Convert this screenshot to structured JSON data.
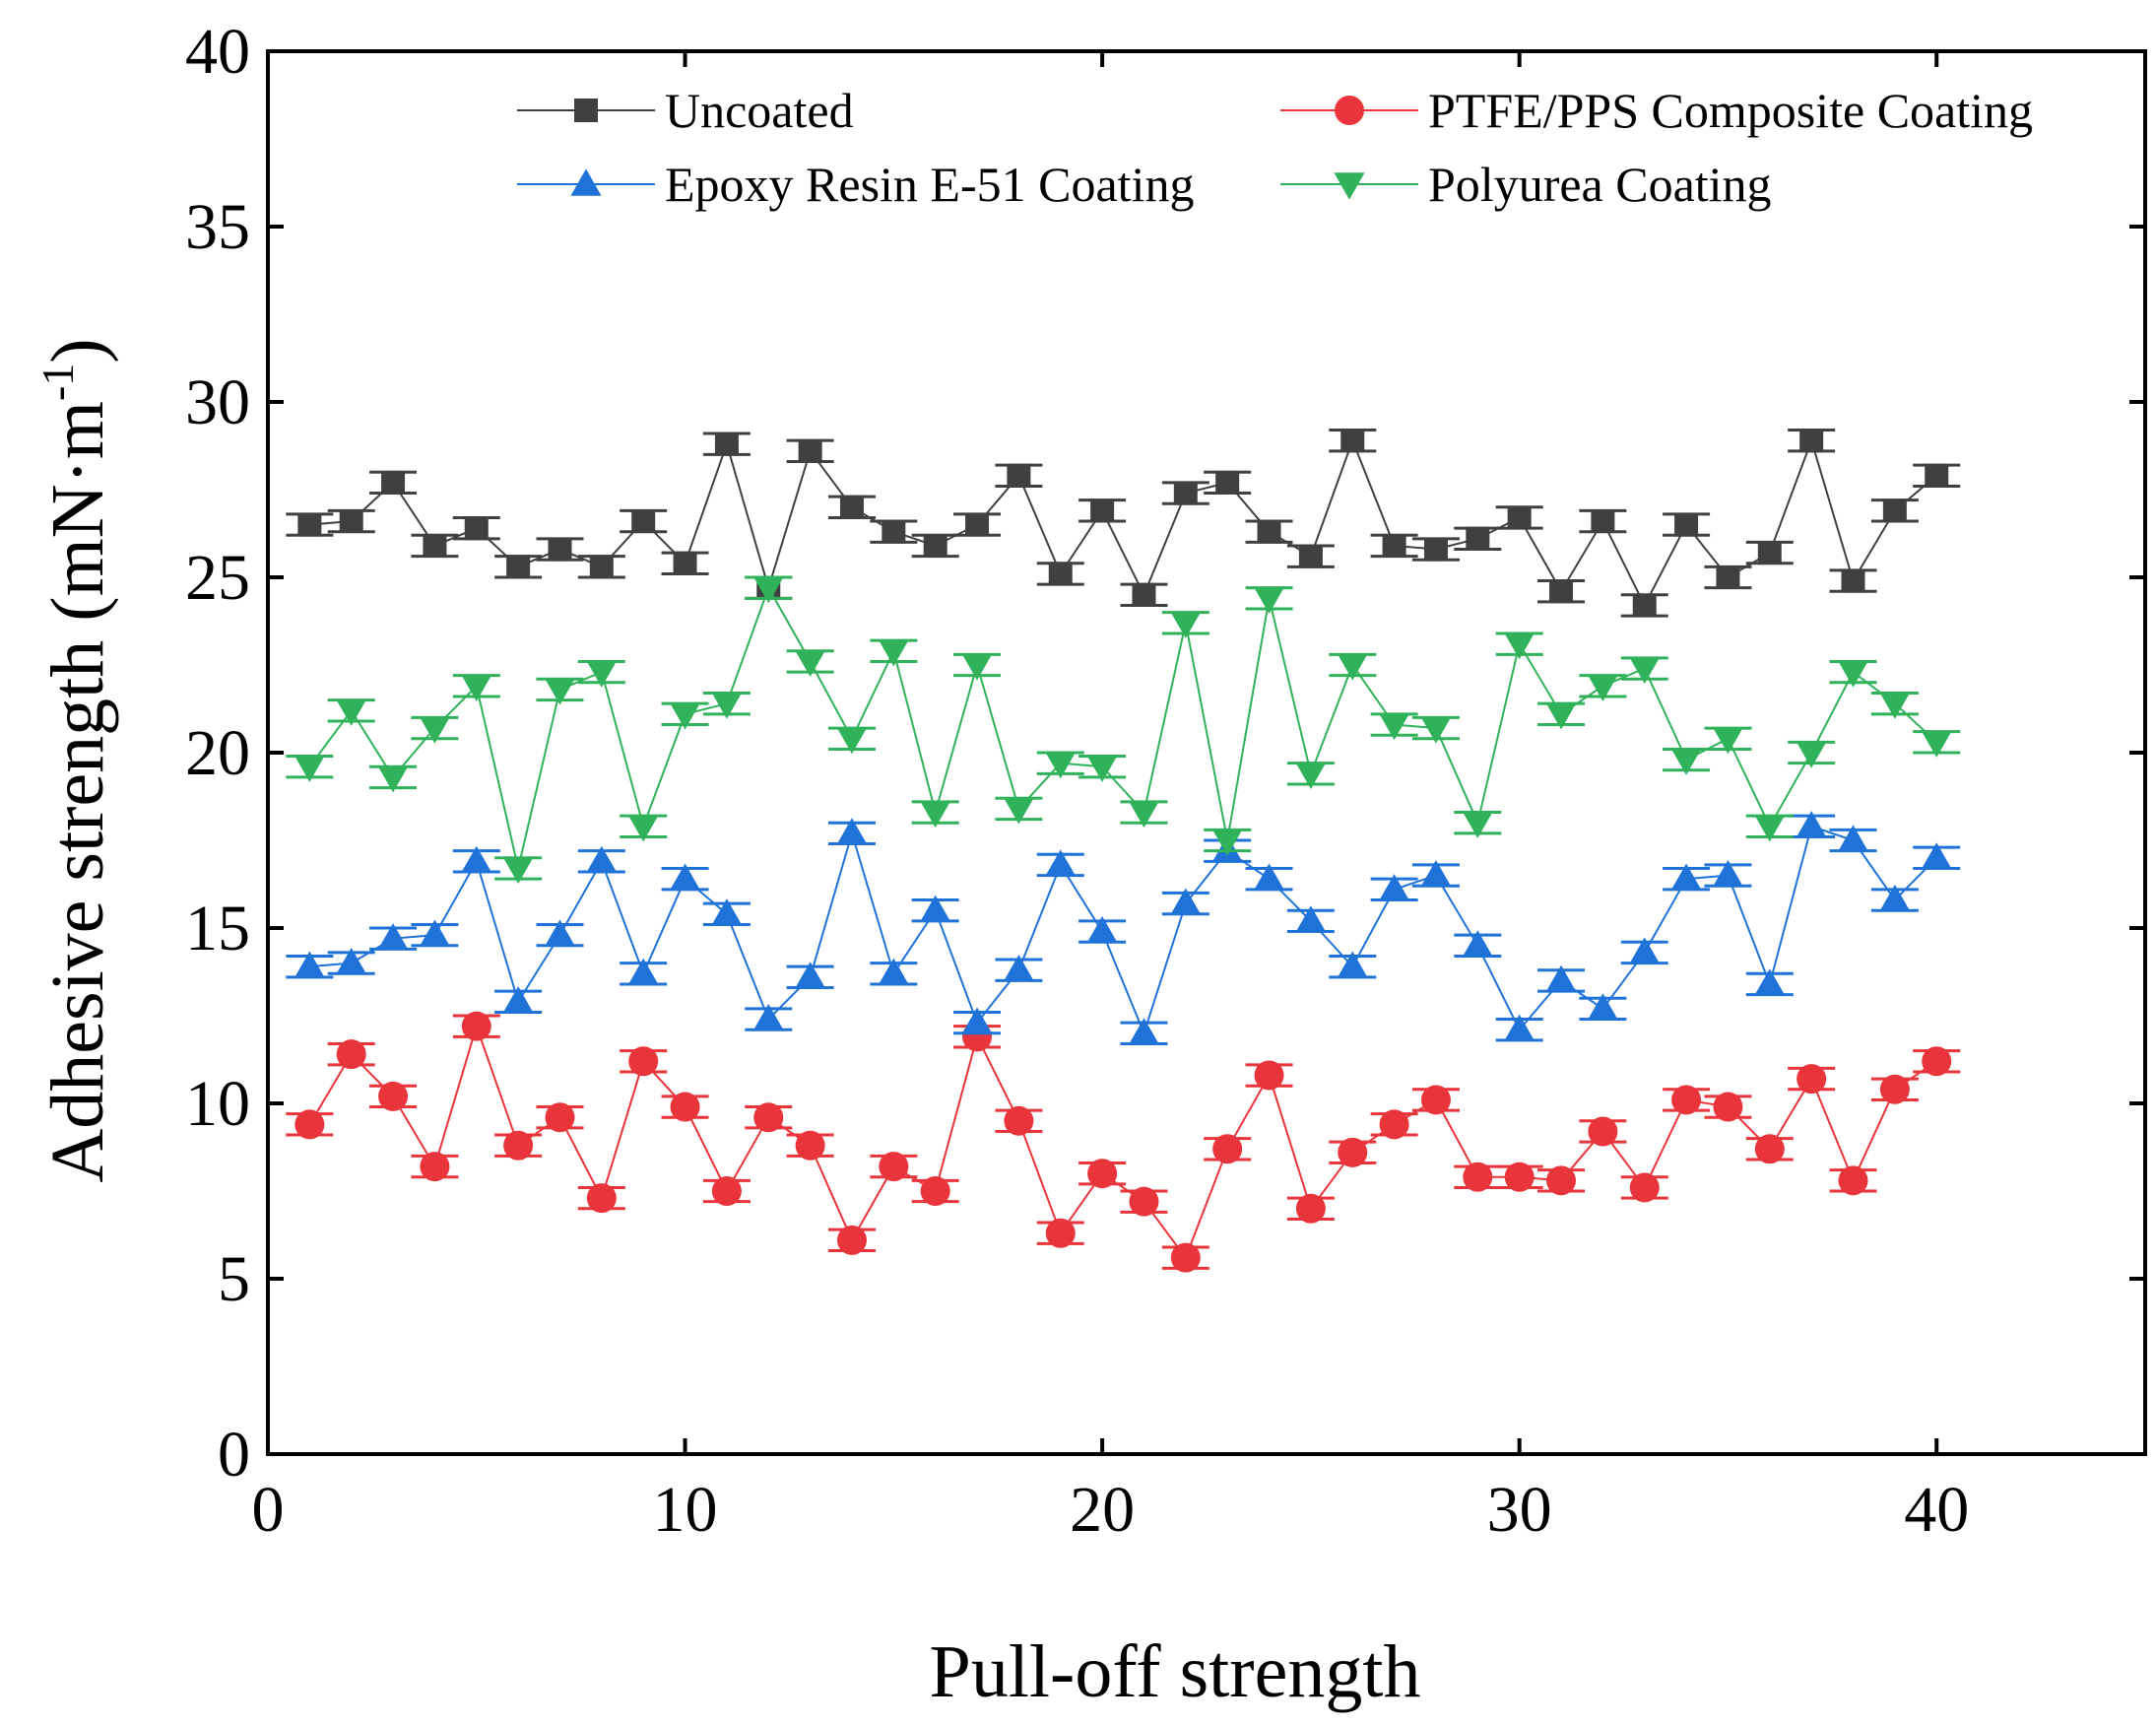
{
  "chart_data": {
    "type": "line",
    "xlabel": "Pull-off strength",
    "ylabel": "Adhesive strength (mN·m",
    "ylabel_superscript": "-1",
    "ylabel_close": ")",
    "xlim": [
      0,
      45
    ],
    "ylim": [
      0,
      40
    ],
    "xticks": [
      0,
      10,
      20,
      30,
      40
    ],
    "yticks": [
      0,
      5,
      10,
      15,
      20,
      25,
      30,
      35,
      40
    ],
    "grid": false,
    "legend_position": "top",
    "error_bars": true,
    "x": [
      1,
      2,
      3,
      4,
      5,
      6,
      7,
      8,
      9,
      10,
      11,
      12,
      13,
      14,
      15,
      16,
      17,
      18,
      19,
      20,
      21,
      22,
      23,
      24,
      25,
      26,
      27,
      28,
      29,
      30,
      31,
      32,
      33,
      34,
      35,
      36,
      37,
      38,
      39,
      40
    ],
    "series": [
      {
        "name": "Uncoated",
        "color": "#404040",
        "marker": "square",
        "values": [
          26.5,
          26.6,
          27.7,
          25.9,
          26.4,
          25.3,
          25.8,
          25.3,
          26.6,
          25.4,
          28.8,
          24.7,
          28.6,
          27.0,
          26.3,
          25.9,
          26.5,
          27.9,
          25.1,
          26.9,
          24.5,
          27.4,
          27.7,
          26.3,
          25.6,
          28.9,
          25.9,
          25.8,
          26.1,
          26.7,
          24.6,
          26.6,
          24.2,
          26.5,
          25.0,
          25.7,
          28.9,
          24.9,
          26.9,
          27.9
        ],
        "errors": [
          0.3,
          0.3,
          0.3,
          0.3,
          0.3,
          0.3,
          0.3,
          0.3,
          0.3,
          0.3,
          0.3,
          0.3,
          0.3,
          0.3,
          0.3,
          0.3,
          0.3,
          0.3,
          0.3,
          0.3,
          0.3,
          0.3,
          0.3,
          0.3,
          0.3,
          0.3,
          0.3,
          0.3,
          0.3,
          0.3,
          0.3,
          0.3,
          0.3,
          0.3,
          0.3,
          0.3,
          0.3,
          0.3,
          0.3,
          0.3
        ]
      },
      {
        "name": "PTFE/PPS Composite Coating",
        "color": "#e8343a",
        "marker": "circle",
        "values": [
          9.4,
          11.4,
          10.2,
          8.2,
          12.2,
          8.8,
          9.6,
          7.3,
          11.2,
          9.9,
          7.5,
          9.6,
          8.8,
          6.1,
          8.2,
          7.5,
          11.9,
          9.5,
          6.3,
          8.0,
          7.2,
          5.6,
          8.7,
          10.8,
          7.0,
          8.6,
          9.4,
          10.1,
          7.9,
          7.9,
          7.8,
          9.2,
          7.6,
          10.1,
          9.9,
          8.7,
          10.7,
          7.8,
          10.4,
          11.2
        ],
        "errors": [
          0.3,
          0.3,
          0.3,
          0.3,
          0.3,
          0.3,
          0.3,
          0.3,
          0.3,
          0.3,
          0.3,
          0.3,
          0.3,
          0.3,
          0.3,
          0.3,
          0.3,
          0.3,
          0.3,
          0.3,
          0.3,
          0.3,
          0.3,
          0.3,
          0.3,
          0.3,
          0.3,
          0.3,
          0.3,
          0.3,
          0.3,
          0.3,
          0.3,
          0.3,
          0.3,
          0.3,
          0.3,
          0.3,
          0.3,
          0.3
        ]
      },
      {
        "name": "Epoxy Resin E-51 Coating",
        "color": "#1f73d8",
        "marker": "triangle-up",
        "values": [
          13.9,
          14.0,
          14.7,
          14.8,
          16.9,
          12.9,
          14.8,
          16.9,
          13.7,
          16.4,
          15.4,
          12.4,
          13.6,
          17.7,
          13.7,
          15.5,
          12.3,
          13.8,
          16.8,
          14.9,
          12.0,
          15.7,
          17.2,
          16.4,
          15.2,
          13.9,
          16.1,
          16.5,
          14.5,
          12.1,
          13.5,
          12.7,
          14.3,
          16.4,
          16.5,
          13.4,
          17.9,
          17.5,
          15.8,
          17.0
        ],
        "errors": [
          0.3,
          0.3,
          0.3,
          0.3,
          0.3,
          0.3,
          0.3,
          0.3,
          0.3,
          0.3,
          0.3,
          0.3,
          0.3,
          0.3,
          0.3,
          0.3,
          0.3,
          0.3,
          0.3,
          0.3,
          0.3,
          0.3,
          0.3,
          0.3,
          0.3,
          0.3,
          0.3,
          0.3,
          0.3,
          0.3,
          0.3,
          0.3,
          0.3,
          0.3,
          0.3,
          0.3,
          0.3,
          0.3,
          0.3,
          0.3
        ]
      },
      {
        "name": "Polyurea Coating",
        "color": "#2fb25a",
        "marker": "triangle-down",
        "values": [
          19.6,
          21.2,
          19.3,
          20.7,
          21.9,
          16.7,
          21.8,
          22.3,
          17.9,
          21.1,
          21.4,
          24.7,
          22.6,
          20.4,
          22.9,
          18.3,
          22.5,
          18.4,
          19.7,
          19.6,
          18.3,
          23.7,
          17.5,
          24.4,
          19.4,
          22.5,
          20.8,
          20.7,
          18.0,
          23.1,
          21.1,
          21.9,
          22.4,
          19.8,
          20.4,
          17.9,
          20.0,
          22.3,
          21.4,
          20.3
        ],
        "errors": [
          0.3,
          0.3,
          0.3,
          0.3,
          0.3,
          0.3,
          0.3,
          0.3,
          0.3,
          0.3,
          0.3,
          0.3,
          0.3,
          0.3,
          0.3,
          0.3,
          0.3,
          0.3,
          0.3,
          0.3,
          0.3,
          0.3,
          0.3,
          0.3,
          0.3,
          0.3,
          0.3,
          0.3,
          0.3,
          0.3,
          0.3,
          0.3,
          0.3,
          0.3,
          0.3,
          0.3,
          0.3,
          0.3,
          0.3,
          0.3
        ]
      }
    ]
  }
}
